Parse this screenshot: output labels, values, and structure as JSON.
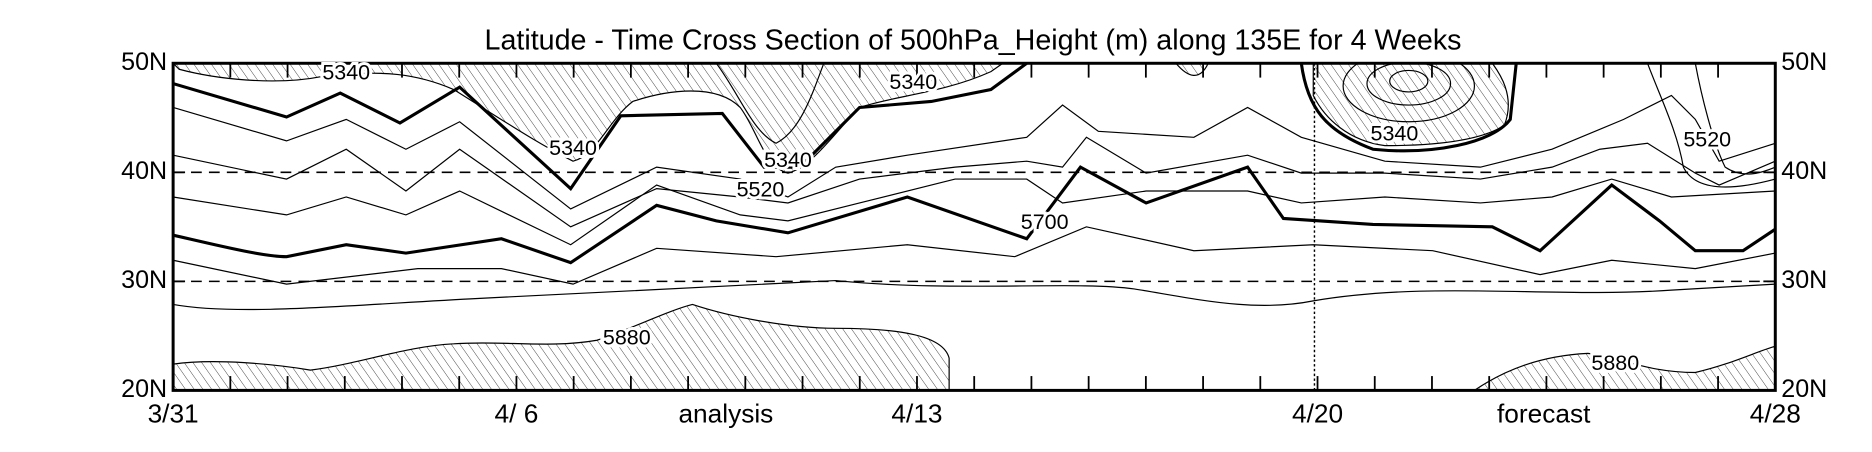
{
  "chart_data": {
    "type": "contour",
    "title": "Latitude - Time Cross Section of 500hPa_Height (m) along 135E for 4 Weeks",
    "categories": [
      "3/31",
      null,
      null,
      null,
      null,
      null,
      "4/ 6",
      null,
      null,
      null,
      null,
      null,
      null,
      "4/13",
      null,
      null,
      null,
      null,
      null,
      null,
      "4/20",
      null,
      null,
      null,
      null,
      null,
      null,
      null,
      "4/28"
    ],
    "annotations": [
      "analysis",
      "forecast"
    ],
    "ylim": [
      20,
      50
    ],
    "yticks": [
      {
        "value": 20,
        "label": "20N"
      },
      {
        "value": 30,
        "label": "30N"
      },
      {
        "value": 40,
        "label": "40N"
      },
      {
        "value": 50,
        "label": "50N"
      }
    ],
    "grid": true,
    "contour_labels": [
      5340,
      5340,
      5340,
      5340,
      5340,
      5520,
      5520,
      5700,
      5880,
      5880
    ]
  }
}
